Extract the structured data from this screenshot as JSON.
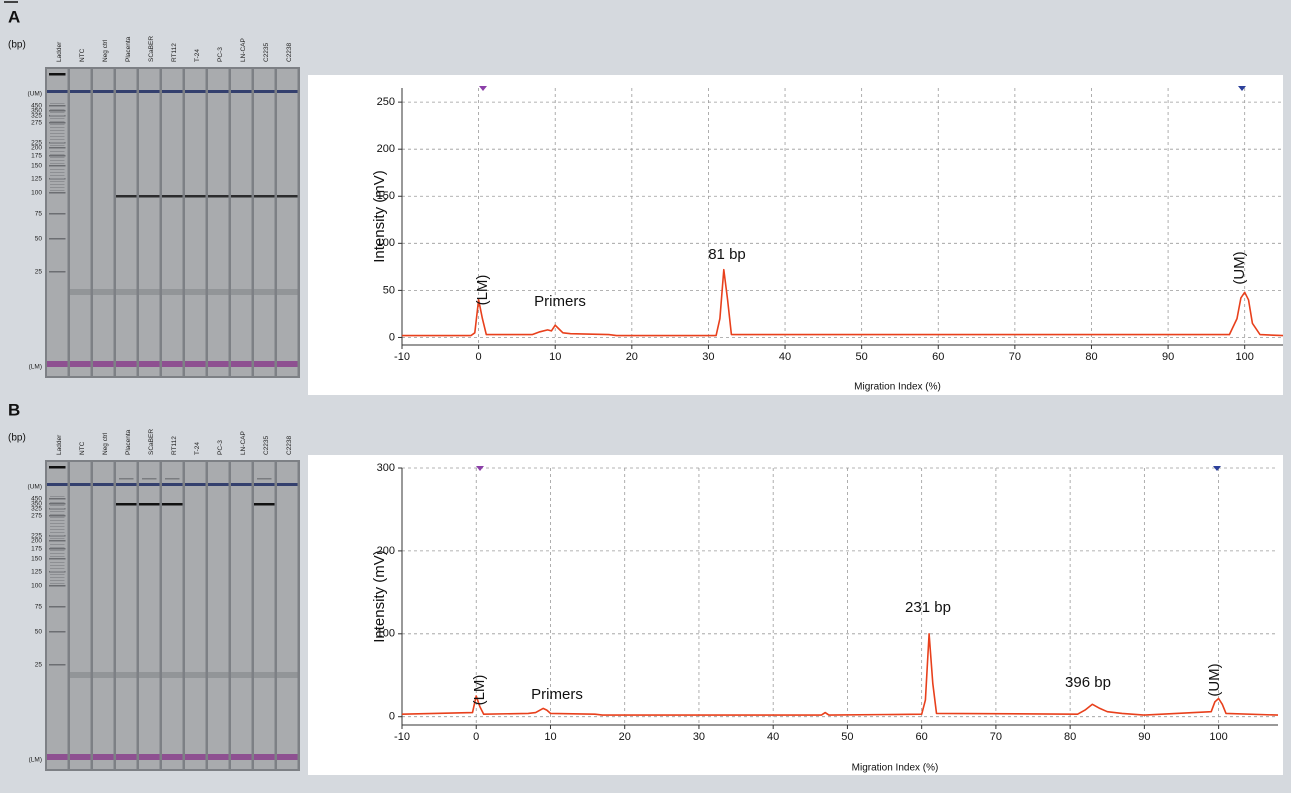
{
  "panels": [
    {
      "label": "A",
      "gel": {
        "unit": "(bp)",
        "lanes": [
          "Ladder",
          "NTC",
          "Neg ctrl",
          "Placenta",
          "SCaBER",
          "RT112",
          "T-24",
          "PC-3",
          "LN-CAP",
          "C2235",
          "C2238"
        ],
        "ladder": [
          "(UM)",
          "450",
          "350",
          "325",
          "275",
          "225",
          "200",
          "175",
          "150",
          "125",
          "100",
          "75",
          "50",
          "25",
          "(LM)"
        ]
      }
    },
    {
      "label": "B",
      "gel": {
        "unit": "(bp)",
        "lanes": [
          "Ladder",
          "NTC",
          "Neg ctrl",
          "Placenta",
          "SCaBER",
          "RT112",
          "T-24",
          "PC-3",
          "LN-CAP",
          "C2235",
          "C2238"
        ],
        "ladder": [
          "(UM)",
          "450",
          "350",
          "325",
          "275",
          "225",
          "200",
          "175",
          "150",
          "125",
          "100",
          "75",
          "50",
          "25",
          "(LM)"
        ]
      }
    }
  ],
  "chart_data": [
    {
      "type": "line",
      "color": "#e8401c",
      "xlabel": "Migration Index (%)",
      "ylabel": "Intensity (mV)",
      "xlim": [
        -10,
        105
      ],
      "ylim": [
        -8,
        265
      ],
      "xticks": [
        -10,
        0,
        10,
        20,
        30,
        40,
        50,
        60,
        70,
        80,
        90,
        100
      ],
      "yticks": [
        0,
        50,
        100,
        150,
        200,
        250
      ],
      "grid": true,
      "annotations": [
        "(LM)",
        "Primers",
        "81 bp",
        "(UM)"
      ],
      "x": [
        -10,
        -1,
        -0.5,
        0,
        0.5,
        1,
        7,
        8,
        9,
        9.5,
        10,
        10.5,
        11,
        12,
        17,
        18,
        31,
        31.5,
        32,
        32.5,
        33,
        98,
        99,
        99.5,
        100,
        100.5,
        101,
        102,
        105
      ],
      "values": [
        2,
        2,
        5,
        40,
        20,
        3,
        3,
        6,
        8,
        7,
        13,
        9,
        5,
        4,
        3,
        2,
        2,
        20,
        72,
        40,
        3,
        3,
        20,
        42,
        48,
        40,
        15,
        3,
        2
      ]
    },
    {
      "type": "line",
      "color": "#e8401c",
      "xlabel": "Migration Index (%)",
      "ylabel": "Intensity (mV)",
      "xlim": [
        -10,
        108
      ],
      "ylim": [
        -10,
        300
      ],
      "xticks": [
        -10,
        0,
        10,
        20,
        30,
        40,
        50,
        60,
        70,
        80,
        90,
        100
      ],
      "yticks": [
        0,
        100,
        200,
        300
      ],
      "grid": true,
      "annotations": [
        "(LM)",
        "Primers",
        "231 bp",
        "396 bp",
        "(UM)"
      ],
      "x": [
        -10,
        -0.5,
        0,
        0.5,
        1,
        7,
        8,
        9,
        9.5,
        10,
        16,
        17,
        46.5,
        47,
        47.5,
        60,
        60.5,
        61,
        61.5,
        62,
        81,
        82,
        83,
        84,
        85,
        87,
        90,
        99,
        99.5,
        100,
        100.5,
        101,
        108
      ],
      "values": [
        3,
        5,
        25,
        12,
        3,
        4,
        5,
        10,
        8,
        4,
        3,
        2,
        2,
        5,
        2,
        3,
        20,
        100,
        40,
        4,
        3,
        8,
        15,
        10,
        6,
        4,
        2,
        6,
        18,
        22,
        15,
        4,
        2
      ]
    }
  ]
}
